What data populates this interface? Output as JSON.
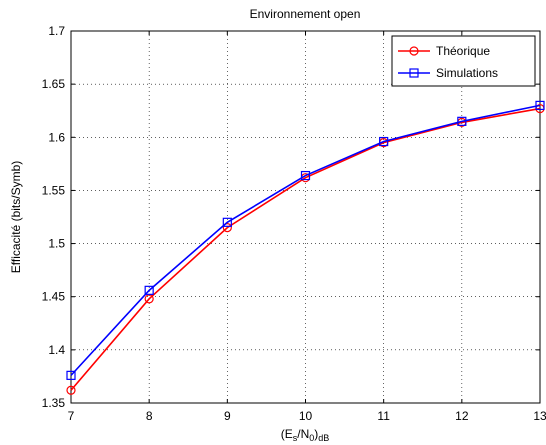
{
  "chart_data": {
    "type": "line",
    "title": "Environnement open",
    "xlabel": {
      "main": "(E",
      "sub1": "s",
      "mid": "/N",
      "sub2": "0",
      "end": ")",
      "sub3": "dB"
    },
    "ylabel": "Efficacité (bits/Symb)",
    "xlim": [
      7,
      13
    ],
    "ylim": [
      1.35,
      1.7
    ],
    "xticks": [
      "7",
      "8",
      "9",
      "10",
      "11",
      "12",
      "13"
    ],
    "yticks": [
      "1.35",
      "1.4",
      "1.45",
      "1.5",
      "1.55",
      "1.6",
      "1.65",
      "1.7"
    ],
    "grid": true,
    "legend_position": "top-right",
    "x": [
      7,
      8,
      9,
      10,
      11,
      12,
      13
    ],
    "series": [
      {
        "name": "Théorique",
        "color": "#ff0000",
        "marker": "circle",
        "values": [
          1.362,
          1.448,
          1.515,
          1.562,
          1.595,
          1.614,
          1.627
        ]
      },
      {
        "name": "Simulations",
        "color": "#0000ff",
        "marker": "square",
        "values": [
          1.376,
          1.456,
          1.52,
          1.564,
          1.596,
          1.615,
          1.63
        ]
      }
    ]
  }
}
